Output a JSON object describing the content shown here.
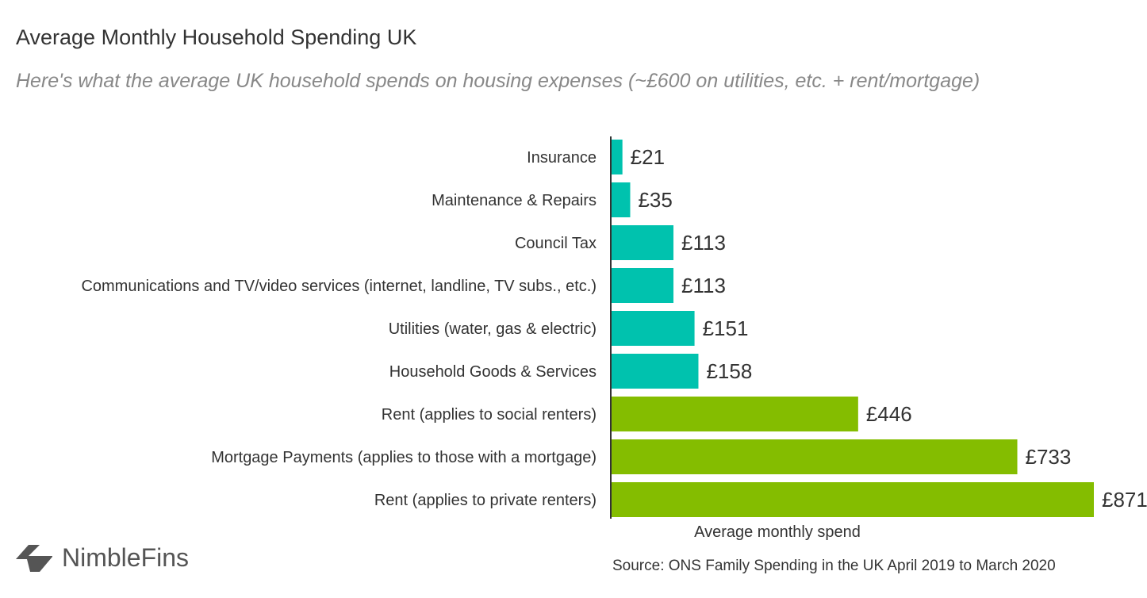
{
  "title": "Average Monthly Household Spending UK",
  "subtitle": "Here's what the average UK household spends on housing expenses (~£600 on utilities, etc. + rent/mortgage)",
  "source": "Source: ONS Family Spending in the UK April 2019 to March 2020",
  "logo": {
    "text": "NimbleFins",
    "icon": "chevron-left-logo-icon"
  },
  "colors": {
    "utilities": "#00C2AE",
    "housing": "#84BD00"
  },
  "chart_data": {
    "type": "bar",
    "orientation": "horizontal",
    "title": "Average Monthly Household Spending UK",
    "xlabel": "Average monthly spend",
    "ylabel": "",
    "xlim": [
      0,
      871
    ],
    "grid": false,
    "value_prefix": "£",
    "categories": [
      "Insurance",
      "Maintenance & Repairs",
      "Council Tax",
      "Communications and TV/video services (internet, landline, TV subs., etc.)",
      "Utilities (water, gas & electric)",
      "Household Goods & Services",
      "Rent (applies to social renters)",
      "Mortgage Payments (applies to those with a mortgage)",
      "Rent (applies to private renters)"
    ],
    "values": [
      21,
      35,
      113,
      113,
      151,
      158,
      446,
      733,
      871
    ],
    "data_labels": [
      "£21",
      "£35",
      "£113",
      "£113",
      "£151",
      "£158",
      "£446",
      "£733",
      "£871"
    ],
    "bar_colors": [
      "#00C2AE",
      "#00C2AE",
      "#00C2AE",
      "#00C2AE",
      "#00C2AE",
      "#00C2AE",
      "#84BD00",
      "#84BD00",
      "#84BD00"
    ]
  }
}
